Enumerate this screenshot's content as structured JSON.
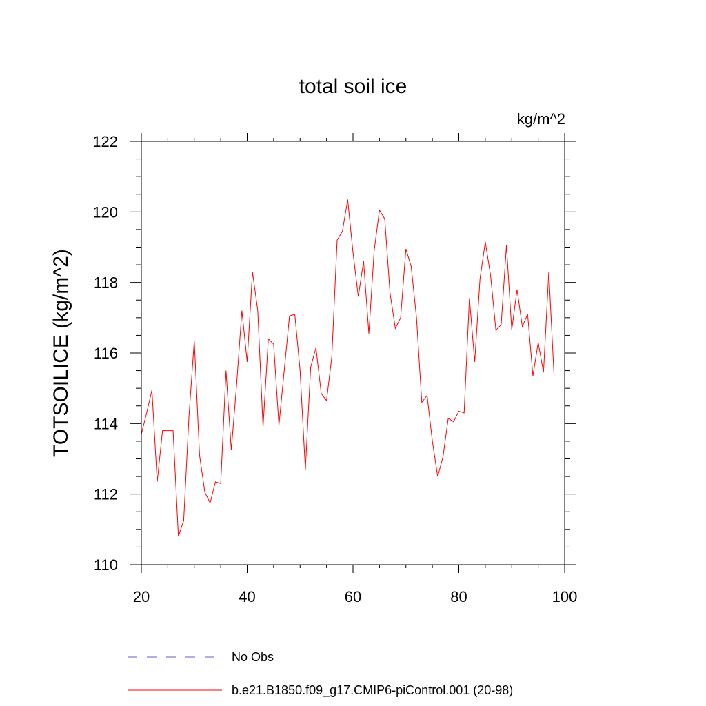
{
  "chart_data": {
    "type": "line",
    "title": "total soil ice",
    "units_label": "kg/m^2",
    "ylabel": "TOTSOILICE  (kg/m^2)",
    "xlabel": "",
    "xlim": [
      20,
      100
    ],
    "ylim": [
      110,
      122
    ],
    "x_ticks": [
      20,
      40,
      60,
      80,
      100
    ],
    "y_ticks": [
      110,
      112,
      114,
      116,
      118,
      120,
      122
    ],
    "grid": false,
    "legend_position": "bottom",
    "series": [
      {
        "name": "No Obs",
        "color": "#6a5acd",
        "dashed": true,
        "x": [],
        "y": []
      },
      {
        "name": "b.e21.B1850.f09_g17.CMIP6-piControl.001 (20-98)",
        "color": "#ff0000",
        "dashed": false,
        "x": [
          20,
          21,
          22,
          23,
          24,
          25,
          26,
          27,
          28,
          29,
          30,
          31,
          32,
          33,
          34,
          35,
          36,
          37,
          38,
          39,
          40,
          41,
          42,
          43,
          44,
          45,
          46,
          47,
          48,
          49,
          50,
          51,
          52,
          53,
          54,
          55,
          56,
          57,
          58,
          59,
          60,
          61,
          62,
          63,
          64,
          65,
          66,
          67,
          68,
          69,
          70,
          71,
          72,
          73,
          74,
          75,
          76,
          77,
          78,
          79,
          80,
          81,
          82,
          83,
          84,
          85,
          86,
          87,
          88,
          89,
          90,
          91,
          92,
          93,
          94,
          95,
          96,
          97,
          98
        ],
        "y": [
          113.7,
          114.3,
          114.95,
          112.35,
          113.8,
          113.8,
          113.8,
          110.8,
          111.25,
          114.2,
          116.35,
          113.1,
          112.05,
          111.75,
          112.35,
          112.3,
          115.5,
          113.25,
          115.1,
          117.2,
          115.75,
          118.3,
          117.2,
          113.9,
          116.4,
          116.25,
          113.95,
          115.5,
          117.05,
          117.1,
          115.5,
          112.7,
          115.6,
          116.15,
          114.85,
          114.65,
          115.9,
          119.2,
          119.45,
          120.35,
          118.85,
          117.6,
          118.6,
          116.55,
          118.9,
          120.05,
          119.8,
          117.7,
          116.7,
          117.0,
          118.95,
          118.45,
          117.0,
          114.6,
          114.8,
          113.5,
          112.5,
          113.05,
          114.15,
          114.05,
          114.35,
          114.3,
          117.55,
          115.75,
          118.1,
          119.15,
          118.2,
          116.65,
          116.8,
          119.05,
          116.65,
          117.8,
          116.75,
          117.1,
          115.35,
          116.3,
          115.45,
          118.3,
          115.35
        ]
      }
    ]
  }
}
